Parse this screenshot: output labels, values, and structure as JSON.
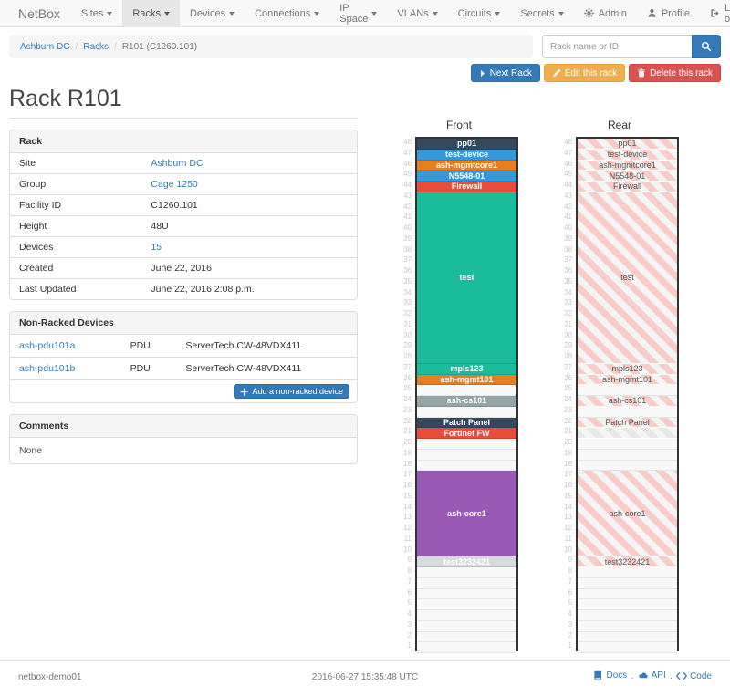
{
  "navbar": {
    "brand": "NetBox",
    "items": [
      {
        "label": "Sites"
      },
      {
        "label": "Racks"
      },
      {
        "label": "Devices"
      },
      {
        "label": "Connections"
      },
      {
        "label": "IP Space"
      },
      {
        "label": "VLANs"
      },
      {
        "label": "Circuits"
      },
      {
        "label": "Secrets"
      }
    ],
    "active_item": "Racks",
    "right_items": [
      {
        "label": "Admin",
        "icon": "gear-icon"
      },
      {
        "label": "Profile",
        "icon": "user-icon"
      },
      {
        "label": "Log out",
        "icon": "logout-icon"
      }
    ]
  },
  "breadcrumb": {
    "separator": "/",
    "items": [
      {
        "label": "Ashburn DC",
        "link": true
      },
      {
        "label": "Racks",
        "link": true
      },
      {
        "label": "R101 (C1260.101)",
        "link": false
      }
    ]
  },
  "search": {
    "placeholder": "Rack name or ID"
  },
  "actions": {
    "next_label": "Next Rack",
    "edit_label": "Edit this rack",
    "delete_label": "Delete this rack"
  },
  "page_title": "Rack R101",
  "rack_panel": {
    "title": "Rack",
    "rows": [
      {
        "label": "Site",
        "value": "Ashburn DC",
        "link": true
      },
      {
        "label": "Group",
        "value": "Cage 1250",
        "link": true
      },
      {
        "label": "Facility ID",
        "value": "C1260.101",
        "link": false
      },
      {
        "label": "Height",
        "value": "48U",
        "link": false
      },
      {
        "label": "Devices",
        "value": "15",
        "link": true
      },
      {
        "label": "Created",
        "value": "June 22, 2016",
        "link": false
      },
      {
        "label": "Last Updated",
        "value": "June 22, 2016 2:08 p.m.",
        "link": false
      }
    ]
  },
  "non_racked": {
    "title": "Non-Racked Devices",
    "rows": [
      {
        "name": "ash-pdu101a",
        "type": "PDU",
        "description": "ServerTech CW-48VDX411"
      },
      {
        "name": "ash-pdu101b",
        "type": "PDU",
        "description": "ServerTech CW-48VDX411"
      }
    ],
    "add_label": "Add a non-racked device"
  },
  "comments": {
    "title": "Comments",
    "body": "None"
  },
  "elevation": {
    "front_title": "Front",
    "rear_title": "Rear",
    "units": 48,
    "devices": [
      {
        "unit": 48,
        "height": 1,
        "label": "pp01",
        "color": "#34495e"
      },
      {
        "unit": 47,
        "height": 1,
        "label": "test-device",
        "color": "#3498db"
      },
      {
        "unit": 46,
        "height": 1,
        "label": "ash-mgmtcore1",
        "color": "#e67e22"
      },
      {
        "unit": 45,
        "height": 1,
        "label": "N5548-01",
        "color": "#3498db"
      },
      {
        "unit": 44,
        "height": 1,
        "label": "Firewall",
        "color": "#e74c3c"
      },
      {
        "unit": 43,
        "height": 16,
        "label": "test",
        "color": "#1abc9c"
      },
      {
        "unit": 27,
        "height": 1,
        "label": "mpls123",
        "color": "#1abc9c"
      },
      {
        "unit": 26,
        "height": 1,
        "label": "ash-mgmt101",
        "color": "#e67e22"
      },
      {
        "unit": 24,
        "height": 1,
        "label": "ash-cs101",
        "color": "#95a5a6"
      },
      {
        "unit": 22,
        "height": 1,
        "label": "Patch Panel",
        "color": "#34495e"
      },
      {
        "unit": 21,
        "height": 1,
        "label": "Fortinet FW",
        "color": "#e74c3c",
        "rear": "hidden"
      },
      {
        "unit": 17,
        "height": 8,
        "label": "ash-core1",
        "color": "#9b59b6"
      },
      {
        "unit": 9,
        "height": 1,
        "label": "test3232421",
        "color": "#d8dbde"
      }
    ]
  },
  "footer": {
    "hostname": "netbox-demo01",
    "timestamp": "2016-06-27 15:35:48 UTC",
    "separator": "·",
    "links": [
      {
        "label": "Docs",
        "icon": "book-icon"
      },
      {
        "label": "API",
        "icon": "cloud-icon"
      },
      {
        "label": "Code",
        "icon": "code-icon"
      }
    ]
  }
}
